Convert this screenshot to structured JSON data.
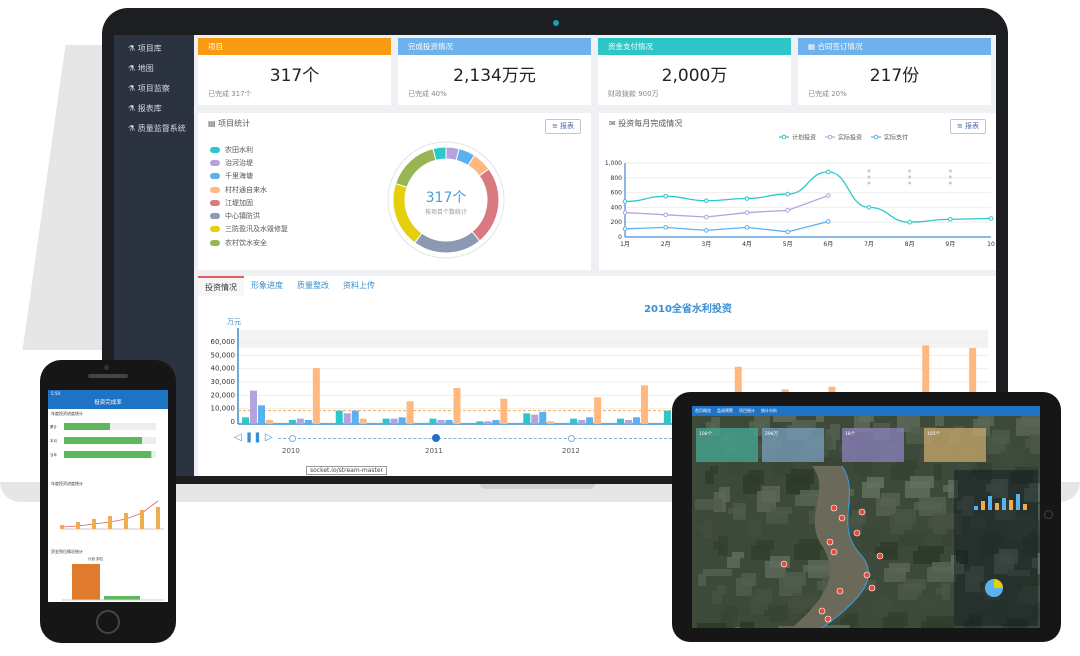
{
  "sidebar": {
    "items": [
      "项目库",
      "地图",
      "项目监察",
      "报表库",
      "质量监督系统"
    ]
  },
  "cards": [
    {
      "title": "项目",
      "value": "317个",
      "sub": "已完成 317个",
      "color": "#f89a12"
    },
    {
      "title": "完成投资情况",
      "value": "2,134万元",
      "sub": "已完成 40%",
      "color": "#6fb1ec"
    },
    {
      "title": "资金支付情况",
      "value": "2,000万",
      "sub": "财政拨款 900万",
      "color": "#2cc6c6"
    },
    {
      "title": "合同签订情况",
      "value": "217份",
      "sub": "已完成 20%",
      "color": "#6fb1ec"
    }
  ],
  "stats": {
    "title": "项目统计",
    "btn": "报表",
    "center": "317个",
    "center_sub": "按项目个数统计",
    "legend": [
      {
        "label": "农田水利",
        "color": "#2ec7c9"
      },
      {
        "label": "治河治堤",
        "color": "#b6a2de"
      },
      {
        "label": "千里海塘",
        "color": "#5ab1ef"
      },
      {
        "label": "村村通自来水",
        "color": "#ffb980"
      },
      {
        "label": "江堤加固",
        "color": "#d87a80"
      },
      {
        "label": "中心镇防洪",
        "color": "#8d98b3"
      },
      {
        "label": "三防盈汛及水毁修复",
        "color": "#e5cf0d"
      },
      {
        "label": "农村饮水安全",
        "color": "#97b552"
      }
    ]
  },
  "monthly": {
    "title": "投资每月完成情况",
    "btn": "报表",
    "legend": [
      "计划投资",
      "实际投资",
      "实际支付"
    ],
    "colors": [
      "#2ec7c9",
      "#b6a2de",
      "#5ab1ef"
    ]
  },
  "chart_data": [
    {
      "type": "pie",
      "title": "",
      "center_label": "317个",
      "slices": [
        {
          "label": "农田水利",
          "value": 4
        },
        {
          "label": "治河治堤",
          "value": 4
        },
        {
          "label": "千里海塘",
          "value": 5
        },
        {
          "label": "村村通自来水",
          "value": 6
        },
        {
          "label": "江堤加固",
          "value": 24
        },
        {
          "label": "中心镇防洪",
          "value": 21
        },
        {
          "label": "三防盈汛及水毁修复",
          "value": 20
        },
        {
          "label": "农村饮水安全",
          "value": 16
        }
      ]
    },
    {
      "type": "line",
      "title": "",
      "categories": [
        "1月",
        "2月",
        "3月",
        "4月",
        "5月",
        "6月",
        "7月",
        "8月",
        "9月",
        "10"
      ],
      "ylim": [
        0,
        1000
      ],
      "yticks": [
        "0",
        "200",
        "400",
        "600",
        "800",
        "1,000"
      ],
      "series": [
        {
          "name": "计划投资",
          "values": [
            480,
            550,
            490,
            520,
            580,
            880,
            400,
            200,
            240,
            250
          ]
        },
        {
          "name": "实际投资",
          "values": [
            330,
            300,
            270,
            330,
            360,
            560,
            null,
            null,
            null,
            null
          ]
        },
        {
          "name": "实际支付",
          "values": [
            110,
            130,
            90,
            130,
            70,
            210,
            null,
            null,
            null,
            null
          ]
        }
      ]
    },
    {
      "type": "bar",
      "title": "2010全省水利投资",
      "ylabel": "万元",
      "ylim": [
        0,
        60000
      ],
      "yticks": [
        "0",
        "10,000",
        "20,000",
        "30,000",
        "40,000",
        "50,000",
        "60,000"
      ],
      "n_categories": 16,
      "series": [
        {
          "values": [
            5000,
            3000,
            10000,
            4000,
            4000,
            2000,
            8000,
            4000,
            4000,
            10000,
            12000,
            15000,
            10000,
            10000,
            12000,
            9000
          ]
        },
        {
          "values": [
            25000,
            4000,
            8000,
            4000,
            3000,
            2000,
            7000,
            3000,
            3000,
            12000,
            14000,
            20000,
            20000,
            3000,
            8000,
            8000
          ]
        },
        {
          "values": [
            14000,
            3000,
            10000,
            5000,
            3000,
            3000,
            9000,
            5000,
            5000,
            14000,
            20000,
            24000,
            21000,
            3000,
            5000,
            20000
          ]
        },
        {
          "values": [
            3000,
            42000,
            4000,
            17000,
            27000,
            19000,
            2000,
            20000,
            29000,
            3000,
            43000,
            26000,
            28000,
            22000,
            59000,
            57000
          ]
        }
      ]
    }
  ],
  "bar_colors": [
    "#2ec7c9",
    "#b6a2de",
    "#5ab1ef",
    "#ffb980"
  ],
  "tabs": [
    "投资情况",
    "形象进度",
    "质量整改",
    "资料上传"
  ],
  "timeline": {
    "years": [
      "2010",
      "2011",
      "2012"
    ]
  },
  "tooltip": "socket.io/stream-master",
  "phone": {
    "time": "5:50",
    "title": "投资完成率",
    "chart1": "年度投资进度统计",
    "rows": [
      "累计",
      "本月",
      "当年"
    ],
    "chart2": "年度投资进度统计",
    "chart3": "资金到位情况统计",
    "legend3": [
      "计划",
      "到位"
    ]
  },
  "tablet": {
    "tabs": [
      "首页概览",
      "监测预警",
      "项目统计",
      "统计分析"
    ],
    "cards": [
      "108个",
      "298万",
      "18个",
      "105个"
    ]
  }
}
